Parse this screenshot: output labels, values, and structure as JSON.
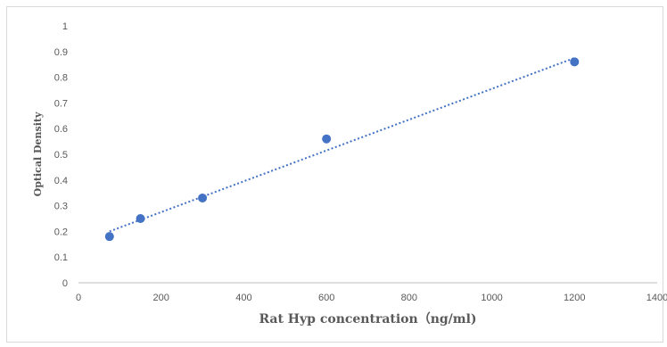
{
  "chart_data": {
    "type": "scatter",
    "title": "",
    "xlabel": "Rat Hyp concentration（ng/ml)",
    "ylabel": "Optical Density",
    "xlim": [
      0,
      1400
    ],
    "ylim": [
      0,
      1
    ],
    "x_ticks": [
      "0",
      "200",
      "400",
      "600",
      "800",
      "1000",
      "1200",
      "1400"
    ],
    "y_ticks": [
      "0",
      "0.1",
      "0.2",
      "0.3",
      "0.4",
      "0.5",
      "0.6",
      "0.7",
      "0.8",
      "0.9",
      "1"
    ],
    "grid": false,
    "legend": "none",
    "series": [
      {
        "x": [
          75,
          150,
          300,
          600,
          1200
        ],
        "y": [
          0.18,
          0.25,
          0.33,
          0.56,
          0.86
        ],
        "marker_color": "#4472c4"
      }
    ],
    "trendline": {
      "kind": "linear",
      "style": "dotted",
      "color": "#4472c4",
      "x": [
        75,
        1200
      ],
      "y": [
        0.2,
        0.875
      ]
    }
  }
}
